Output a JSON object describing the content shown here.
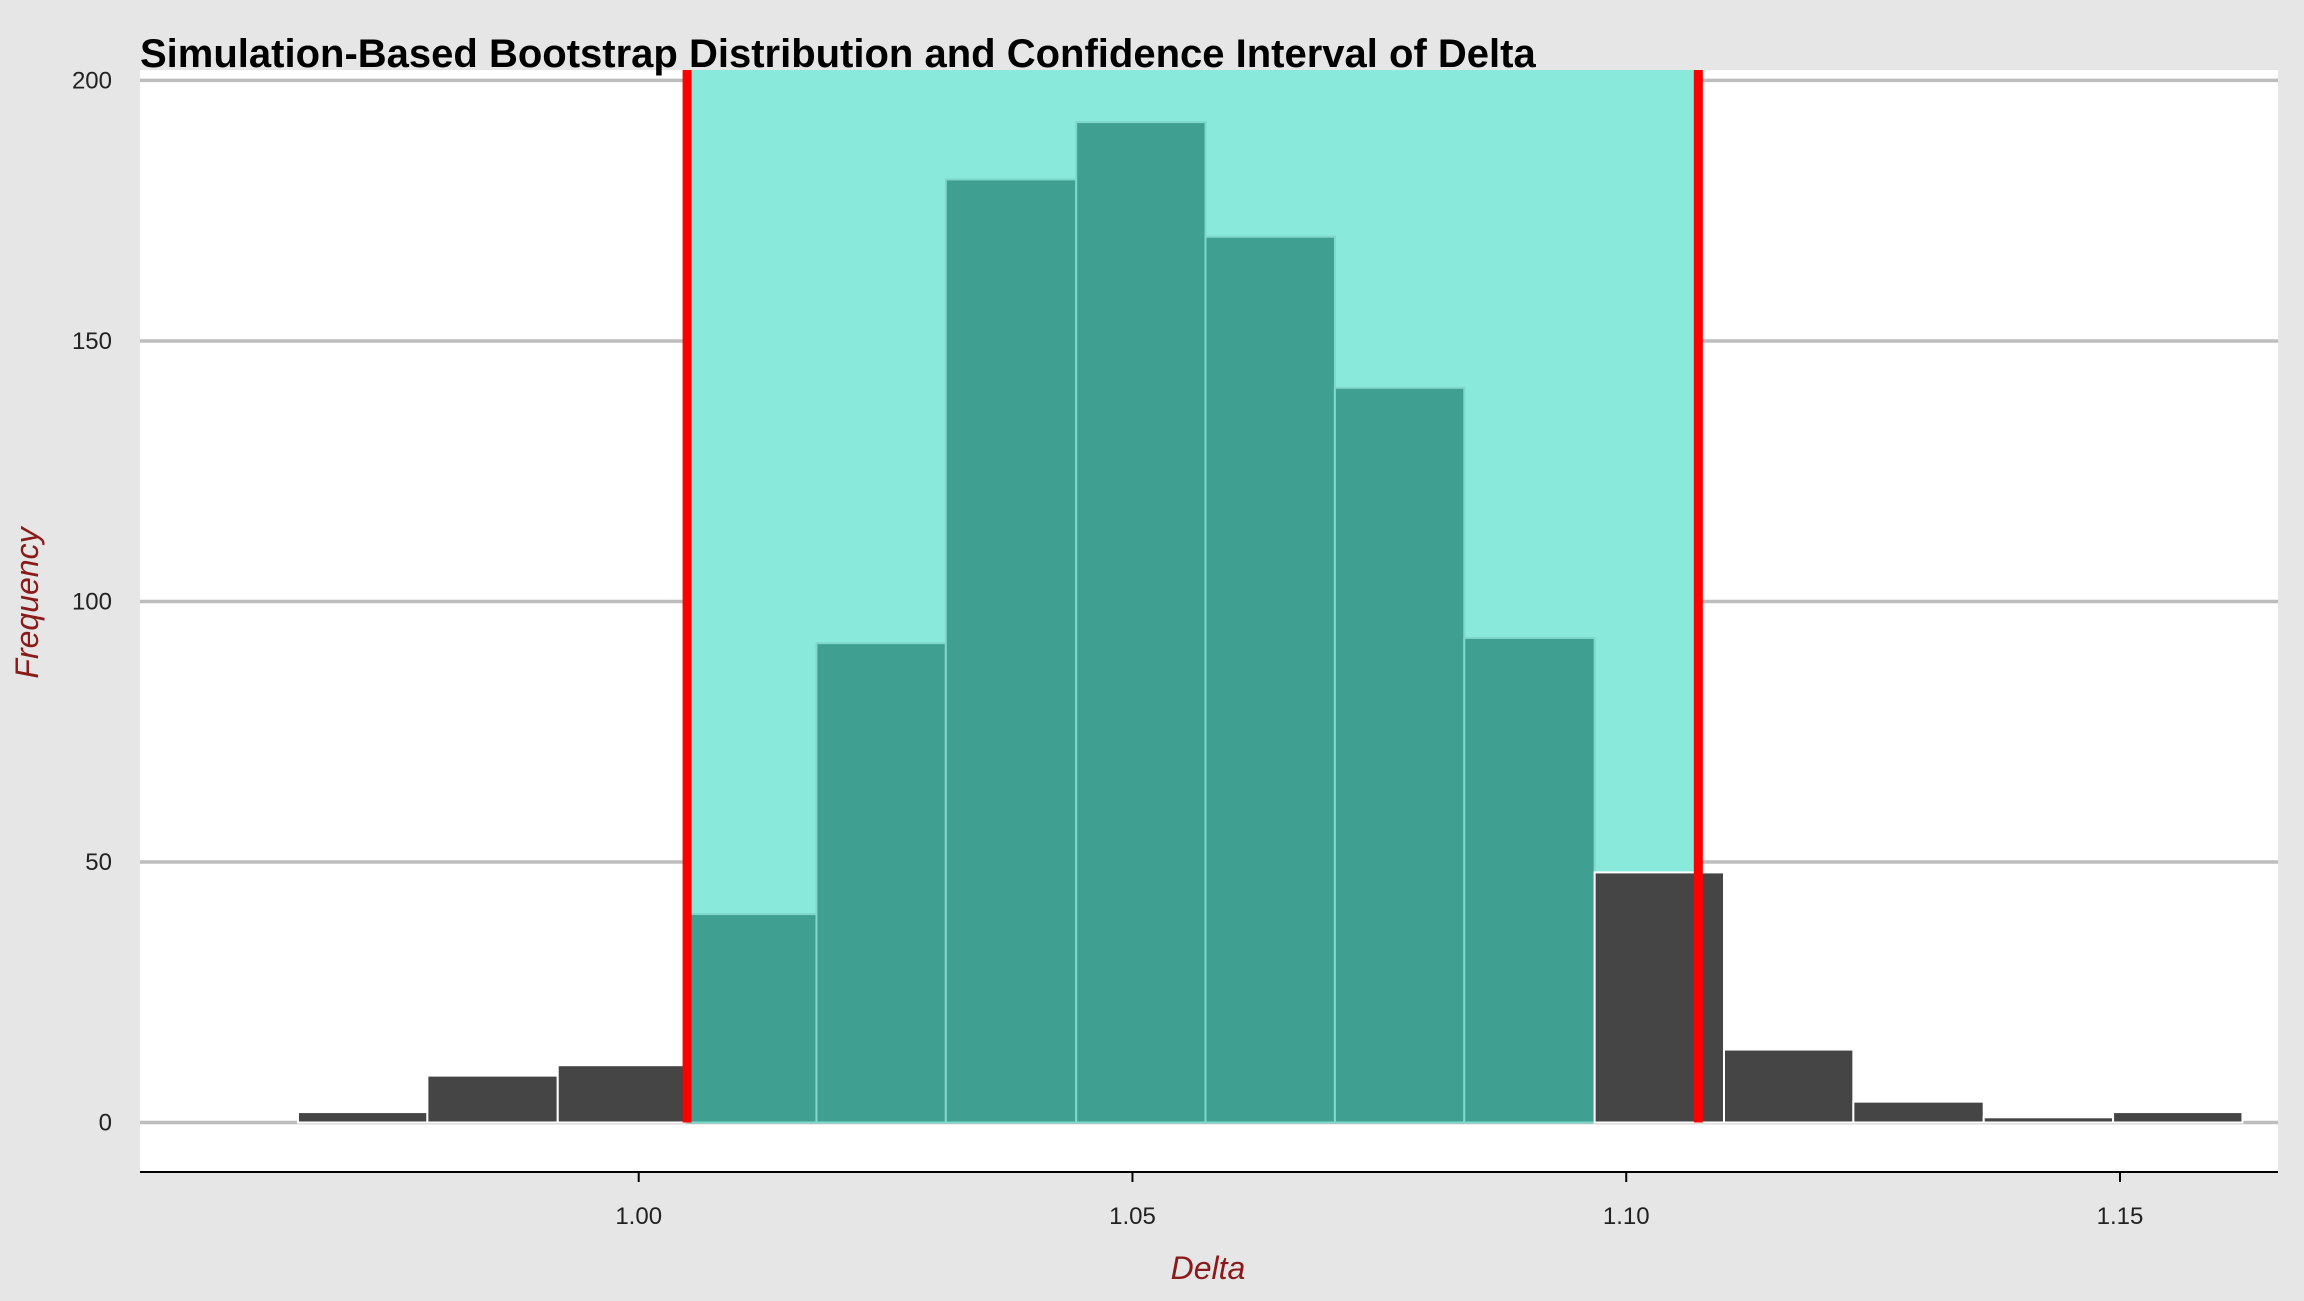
{
  "chart_data": {
    "type": "bar",
    "title": "Simulation-Based Bootstrap Distribution and Confidence Interval of Delta",
    "xlabel": "Delta",
    "ylabel": "Frequency",
    "xlim": [
      0.9495,
      1.166
    ],
    "ylim": [
      -9.5,
      202
    ],
    "x_ticks": [
      1.0,
      1.05,
      1.1,
      1.15
    ],
    "x_tick_labels": [
      "1.00",
      "1.05",
      "1.10",
      "1.15"
    ],
    "y_ticks": [
      0,
      50,
      100,
      150,
      200
    ],
    "y_tick_labels": [
      "0",
      "50",
      "100",
      "150",
      "200"
    ],
    "grid": "horizontal",
    "bins": [
      {
        "start": 0.9655,
        "end": 0.9786,
        "count": 2
      },
      {
        "start": 0.9786,
        "end": 0.9918,
        "count": 9
      },
      {
        "start": 0.9918,
        "end": 1.0049,
        "count": 11
      },
      {
        "start": 1.0049,
        "end": 1.018,
        "count": 40
      },
      {
        "start": 1.018,
        "end": 1.0311,
        "count": 92
      },
      {
        "start": 1.0311,
        "end": 1.0443,
        "count": 181
      },
      {
        "start": 1.0443,
        "end": 1.0574,
        "count": 192
      },
      {
        "start": 1.0574,
        "end": 1.0705,
        "count": 170
      },
      {
        "start": 1.0705,
        "end": 1.0836,
        "count": 141
      },
      {
        "start": 1.0836,
        "end": 1.0968,
        "count": 93
      },
      {
        "start": 1.0968,
        "end": 1.1099,
        "count": 48
      },
      {
        "start": 1.1099,
        "end": 1.123,
        "count": 14
      },
      {
        "start": 1.123,
        "end": 1.1362,
        "count": 4
      },
      {
        "start": 1.1362,
        "end": 1.1493,
        "count": 1
      },
      {
        "start": 1.1493,
        "end": 1.1624,
        "count": 2
      }
    ],
    "confidence_interval": [
      1.0049,
      1.1073
    ],
    "colors": {
      "bar": "#454545",
      "bar_in_ci": "#3fa092",
      "bar_outline": "#ffffff",
      "ci_shade": "#89e9db",
      "ci_line": "#ff0000",
      "grid": "#bdbdbd",
      "panel": "#ffffff",
      "background": "#e6e6e6"
    }
  }
}
